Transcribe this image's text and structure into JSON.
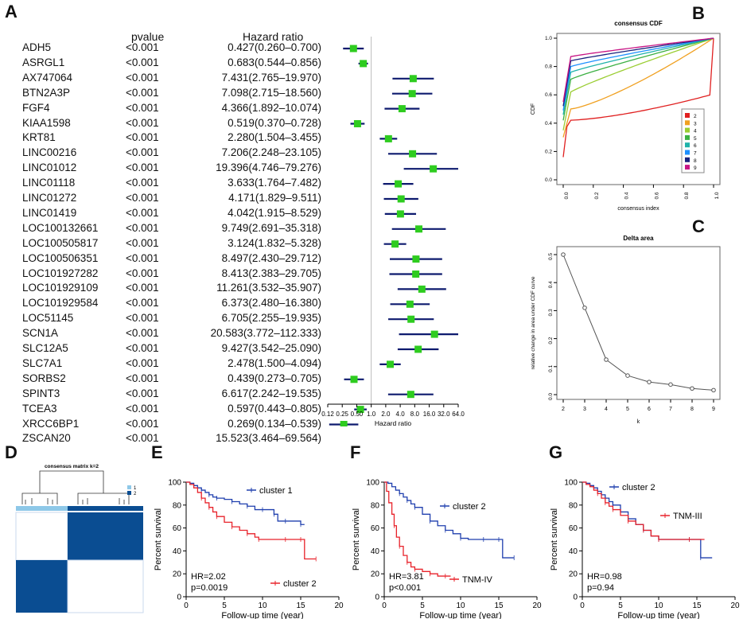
{
  "panels": {
    "A": "A",
    "B": "B",
    "C": "C",
    "D": "D",
    "E": "E",
    "F": "F",
    "G": "G"
  },
  "forest": {
    "col_pvalue": "pvalue",
    "col_hr": "Hazard ratio",
    "xlabel": "Hazard ratio",
    "ticks": [
      "0.12",
      "0.25",
      "0.50",
      "1.0",
      "2.0",
      "4.0",
      "8.0",
      "16.0",
      "32.0",
      "64.0"
    ],
    "rows": [
      {
        "gene": "ADH5",
        "p": "<0.001",
        "hr_text": "0.427(0.260–0.700)",
        "hr": 0.427,
        "lo": 0.26,
        "hi": 0.7
      },
      {
        "gene": "ASRGL1",
        "p": "<0.001",
        "hr_text": "0.683(0.544–0.856)",
        "hr": 0.683,
        "lo": 0.544,
        "hi": 0.856
      },
      {
        "gene": "AX747064",
        "p": "<0.001",
        "hr_text": "7.431(2.765–19.970)",
        "hr": 7.431,
        "lo": 2.765,
        "hi": 19.97
      },
      {
        "gene": "BTN2A3P",
        "p": "<0.001",
        "hr_text": "7.098(2.715–18.560)",
        "hr": 7.098,
        "lo": 2.715,
        "hi": 18.56
      },
      {
        "gene": "FGF4",
        "p": "<0.001",
        "hr_text": "4.366(1.892–10.074)",
        "hr": 4.366,
        "lo": 1.892,
        "hi": 10.074
      },
      {
        "gene": "KIAA1598",
        "p": "<0.001",
        "hr_text": "0.519(0.370–0.728)",
        "hr": 0.519,
        "lo": 0.37,
        "hi": 0.728
      },
      {
        "gene": "KRT81",
        "p": "<0.001",
        "hr_text": "2.280(1.504–3.455)",
        "hr": 2.28,
        "lo": 1.504,
        "hi": 3.455
      },
      {
        "gene": "LINC00216",
        "p": "<0.001",
        "hr_text": "7.206(2.248–23.105)",
        "hr": 7.206,
        "lo": 2.248,
        "hi": 23.105
      },
      {
        "gene": "LINC01012",
        "p": "<0.001",
        "hr_text": "19.396(4.746–79.276)",
        "hr": 19.396,
        "lo": 4.746,
        "hi": 79.276
      },
      {
        "gene": "LINC01118",
        "p": "<0.001",
        "hr_text": "3.633(1.764–7.482)",
        "hr": 3.633,
        "lo": 1.764,
        "hi": 7.482
      },
      {
        "gene": "LINC01272",
        "p": "<0.001",
        "hr_text": "4.171(1.829–9.511)",
        "hr": 4.171,
        "lo": 1.829,
        "hi": 9.511
      },
      {
        "gene": "LINC01419",
        "p": "<0.001",
        "hr_text": "4.042(1.915–8.529)",
        "hr": 4.042,
        "lo": 1.915,
        "hi": 8.529
      },
      {
        "gene": "LOC100132661",
        "p": "<0.001",
        "hr_text": "9.749(2.691–35.318)",
        "hr": 9.749,
        "lo": 2.691,
        "hi": 35.318
      },
      {
        "gene": "LOC100505817",
        "p": "<0.001",
        "hr_text": "3.124(1.832–5.328)",
        "hr": 3.124,
        "lo": 1.832,
        "hi": 5.328
      },
      {
        "gene": "LOC100506351",
        "p": "<0.001",
        "hr_text": "8.497(2.430–29.712)",
        "hr": 8.497,
        "lo": 2.43,
        "hi": 29.712
      },
      {
        "gene": "LOC101927282",
        "p": "<0.001",
        "hr_text": "8.413(2.383–29.705)",
        "hr": 8.413,
        "lo": 2.383,
        "hi": 29.705
      },
      {
        "gene": "LOC101929109",
        "p": "<0.001",
        "hr_text": "11.261(3.532–35.907)",
        "hr": 11.261,
        "lo": 3.532,
        "hi": 35.907
      },
      {
        "gene": "LOC101929584",
        "p": "<0.001",
        "hr_text": "6.373(2.480–16.380)",
        "hr": 6.373,
        "lo": 2.48,
        "hi": 16.38
      },
      {
        "gene": "LOC51145",
        "p": "<0.001",
        "hr_text": "6.705(2.255–19.935)",
        "hr": 6.705,
        "lo": 2.255,
        "hi": 19.935
      },
      {
        "gene": "SCN1A",
        "p": "<0.001",
        "hr_text": "20.583(3.772–112.333)",
        "hr": 20.583,
        "lo": 3.772,
        "hi": 112.333
      },
      {
        "gene": "SLC12A5",
        "p": "<0.001",
        "hr_text": "9.427(3.542–25.090)",
        "hr": 9.427,
        "lo": 3.542,
        "hi": 25.09
      },
      {
        "gene": "SLC7A1",
        "p": "<0.001",
        "hr_text": "2.478(1.500–4.094)",
        "hr": 2.478,
        "lo": 1.5,
        "hi": 4.094
      },
      {
        "gene": "SORBS2",
        "p": "<0.001",
        "hr_text": "0.439(0.273–0.705)",
        "hr": 0.439,
        "lo": 0.273,
        "hi": 0.705
      },
      {
        "gene": "SPINT3",
        "p": "<0.001",
        "hr_text": "6.617(2.242–19.535)",
        "hr": 6.617,
        "lo": 2.242,
        "hi": 19.535
      },
      {
        "gene": "TCEA3",
        "p": "<0.001",
        "hr_text": "0.597(0.443–0.805)",
        "hr": 0.597,
        "lo": 0.443,
        "hi": 0.805
      },
      {
        "gene": "XRCC6BP1",
        "p": "<0.001",
        "hr_text": "0.269(0.134–0.539)",
        "hr": 0.269,
        "lo": 0.134,
        "hi": 0.539
      },
      {
        "gene": "ZSCAN20",
        "p": "<0.001",
        "hr_text": "15.523(3.464–69.564)",
        "hr": 15.523,
        "lo": 3.464,
        "hi": 69.564
      }
    ]
  },
  "cdf": {
    "title": "consensus CDF",
    "xlabel": "consensus index",
    "ylabel": "CDF",
    "xticks": [
      "0.0",
      "0.2",
      "0.4",
      "0.6",
      "0.8",
      "1.0"
    ],
    "yticks": [
      "0.0",
      "0.2",
      "0.4",
      "0.6",
      "0.8",
      "1.0"
    ],
    "legend": [
      "2",
      "3",
      "4",
      "5",
      "6",
      "7",
      "8",
      "9"
    ],
    "colors": [
      "#e02020",
      "#f0a020",
      "#9acd32",
      "#3cb043",
      "#20b2aa",
      "#1e90ff",
      "#1a237e",
      "#c71585"
    ],
    "start": [
      0.16,
      0.3,
      0.35,
      0.42,
      0.46,
      0.49,
      0.52,
      0.55
    ],
    "mid": [
      0.42,
      0.5,
      0.62,
      0.71,
      0.76,
      0.8,
      0.84,
      0.87
    ]
  },
  "delta": {
    "title": "Delta area",
    "xlabel": "k",
    "ylabel": "relative change in area under CDF curve",
    "k": [
      2,
      3,
      4,
      5,
      6,
      7,
      8,
      9
    ],
    "values": [
      0.5,
      0.31,
      0.125,
      0.068,
      0.045,
      0.036,
      0.022,
      0.016
    ],
    "xticks": [
      "2",
      "3",
      "4",
      "5",
      "6",
      "7",
      "8",
      "9"
    ],
    "yticks": [
      "0.0",
      "0.1",
      "0.2",
      "0.3",
      "0.4",
      "0.5"
    ]
  },
  "heatmap": {
    "title": "consensus matrix k=2",
    "legend": [
      "1",
      "2"
    ],
    "colors": [
      "#8ec8e8",
      "#0a4d92"
    ]
  },
  "km": [
    {
      "id": "E",
      "series": [
        {
          "name": "cluster 1",
          "color": "#1f3fae",
          "points": [
            [
              0,
              100
            ],
            [
              0.5,
              99
            ],
            [
              1,
              97
            ],
            [
              1.5,
              95
            ],
            [
              2,
              93
            ],
            [
              2.5,
              91
            ],
            [
              3,
              89
            ],
            [
              3.5,
              87
            ],
            [
              4,
              86
            ],
            [
              5,
              85
            ],
            [
              6,
              83
            ],
            [
              7,
              81
            ],
            [
              8,
              79
            ],
            [
              9,
              76
            ],
            [
              10,
              76
            ],
            [
              11,
              76
            ],
            [
              11.5,
              72
            ],
            [
              12,
              66
            ],
            [
              13,
              66
            ],
            [
              14,
              66
            ],
            [
              15,
              63
            ],
            [
              15.5,
              63
            ]
          ]
        },
        {
          "name": "cluster 2",
          "color": "#e8222a",
          "points": [
            [
              0,
              100
            ],
            [
              0.5,
              98
            ],
            [
              1,
              95
            ],
            [
              1.5,
              91
            ],
            [
              2,
              86
            ],
            [
              2.5,
              82
            ],
            [
              3,
              78
            ],
            [
              3.5,
              74
            ],
            [
              4,
              70
            ],
            [
              5,
              65
            ],
            [
              6,
              61
            ],
            [
              7,
              58
            ],
            [
              8,
              55
            ],
            [
              9,
              52
            ],
            [
              9.5,
              50
            ],
            [
              11,
              50
            ],
            [
              13,
              50
            ],
            [
              14,
              50
            ],
            [
              15,
              50
            ],
            [
              15.5,
              33
            ],
            [
              17,
              33
            ]
          ]
        }
      ],
      "hr": "HR=2.02",
      "p": "p=0.0019",
      "xlabel": "Follow-up time (year)",
      "ylabel": "Percent survival",
      "xticks": [
        "0",
        "5",
        "10",
        "15",
        "20"
      ],
      "yticks": [
        "0",
        "20",
        "40",
        "60",
        "80",
        "100"
      ]
    },
    {
      "id": "F",
      "series": [
        {
          "name": "cluster 2",
          "color": "#1f3fae",
          "points": [
            [
              0,
              100
            ],
            [
              0.5,
              99
            ],
            [
              1,
              96
            ],
            [
              1.5,
              93
            ],
            [
              2,
              90
            ],
            [
              2.5,
              87
            ],
            [
              3,
              84
            ],
            [
              3.5,
              81
            ],
            [
              4,
              78
            ],
            [
              5,
              72
            ],
            [
              6,
              66
            ],
            [
              7,
              62
            ],
            [
              8,
              58
            ],
            [
              9,
              55
            ],
            [
              10,
              51
            ],
            [
              11,
              50
            ],
            [
              13,
              50
            ],
            [
              14,
              50
            ],
            [
              15,
              50
            ],
            [
              15.5,
              34
            ],
            [
              17,
              34
            ]
          ]
        },
        {
          "name": "TNM-IV",
          "color": "#e8222a",
          "points": [
            [
              0,
              100
            ],
            [
              0.3,
              92
            ],
            [
              0.6,
              82
            ],
            [
              1,
              72
            ],
            [
              1.3,
              62
            ],
            [
              1.6,
              52
            ],
            [
              2,
              44
            ],
            [
              2.5,
              36
            ],
            [
              3,
              30
            ],
            [
              3.5,
              26
            ],
            [
              4,
              24
            ],
            [
              5,
              22
            ],
            [
              6,
              20
            ],
            [
              7,
              18
            ],
            [
              8,
              18
            ],
            [
              8.7,
              18
            ]
          ]
        }
      ],
      "hr": "HR=3.81",
      "p": "p<0.001",
      "xlabel": "Follow-up time (year)",
      "ylabel": "Percent survival",
      "xticks": [
        "0",
        "5",
        "10",
        "15",
        "20"
      ],
      "yticks": [
        "0",
        "20",
        "40",
        "60",
        "80",
        "100"
      ]
    },
    {
      "id": "G",
      "series": [
        {
          "name": "cluster 2",
          "color": "#1f3fae",
          "points": [
            [
              0,
              100
            ],
            [
              0.5,
              99
            ],
            [
              1,
              97
            ],
            [
              1.5,
              95
            ],
            [
              2,
              92
            ],
            [
              2.5,
              89
            ],
            [
              3,
              86
            ],
            [
              3.5,
              83
            ],
            [
              4,
              80
            ],
            [
              5,
              74
            ],
            [
              6,
              68
            ],
            [
              7,
              63
            ],
            [
              8,
              58
            ],
            [
              9,
              53
            ],
            [
              10,
              50
            ],
            [
              12,
              50
            ],
            [
              14,
              50
            ],
            [
              15,
              50
            ],
            [
              15.5,
              34
            ],
            [
              17,
              34
            ]
          ]
        },
        {
          "name": "TNM-III",
          "color": "#e8222a",
          "points": [
            [
              0,
              100
            ],
            [
              0.5,
              98
            ],
            [
              1,
              96
            ],
            [
              1.5,
              93
            ],
            [
              2,
              90
            ],
            [
              2.5,
              86
            ],
            [
              3,
              82
            ],
            [
              3.5,
              79
            ],
            [
              4,
              76
            ],
            [
              5,
              71
            ],
            [
              6,
              66
            ],
            [
              7,
              63
            ],
            [
              8,
              58
            ],
            [
              9,
              53
            ],
            [
              10,
              50
            ],
            [
              12,
              50
            ],
            [
              14,
              50
            ],
            [
              16,
              50
            ]
          ]
        }
      ],
      "hr": "HR=0.98",
      "p": "p=0.94",
      "xlabel": "Follow-up time (year)",
      "ylabel": "Percent survival",
      "xticks": [
        "0",
        "5",
        "10",
        "15",
        "20"
      ],
      "yticks": [
        "0",
        "20",
        "40",
        "60",
        "80",
        "100"
      ]
    }
  ]
}
